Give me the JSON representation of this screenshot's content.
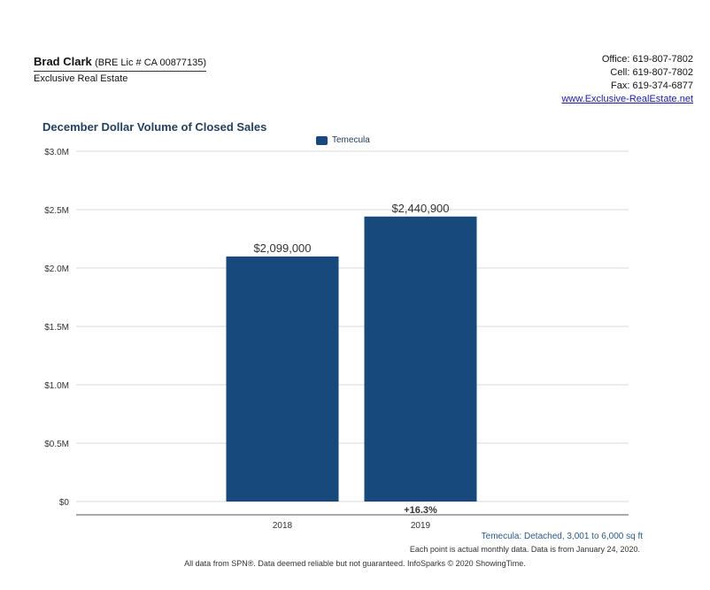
{
  "agent": {
    "name": "Brad Clark",
    "license": "(BRE Lic # CA 00877135)",
    "company": "Exclusive Real Estate"
  },
  "contact": {
    "office": "Office: 619-807-7802",
    "cell": "Cell: 619-807-7802",
    "fax": "Fax: 619-374-6877",
    "website": "www.Exclusive-RealEstate.net"
  },
  "colors": {
    "bar": "#17497c",
    "title": "#23415f",
    "grid": "#d9d9d9",
    "axis": "#555555"
  },
  "footnotes": {
    "series_desc": "Temecula: Detached, 3,001 to 6,000 sq ft",
    "data_note": "Each point is actual monthly data. Data is from January 24, 2020.",
    "source": "All data from SPN®. Data deemed reliable but not guaranteed. InfoSparks © 2020 ShowingTime."
  },
  "chart_data": {
    "type": "bar",
    "title": "December Dollar Volume of Closed Sales",
    "categories": [
      "2018",
      "2019"
    ],
    "series": [
      {
        "name": "Temecula",
        "values": [
          2099000,
          2440900
        ],
        "color": "#17497c"
      }
    ],
    "data_labels": [
      "$2,099,000",
      "$2,440,900"
    ],
    "change_label": "+16.3%",
    "y_ticks": [
      "$0",
      "$0.5M",
      "$1.0M",
      "$1.5M",
      "$2.0M",
      "$2.5M",
      "$3.0M"
    ],
    "ylim": [
      0,
      3000000
    ],
    "grid": true,
    "legend": "top-center"
  }
}
